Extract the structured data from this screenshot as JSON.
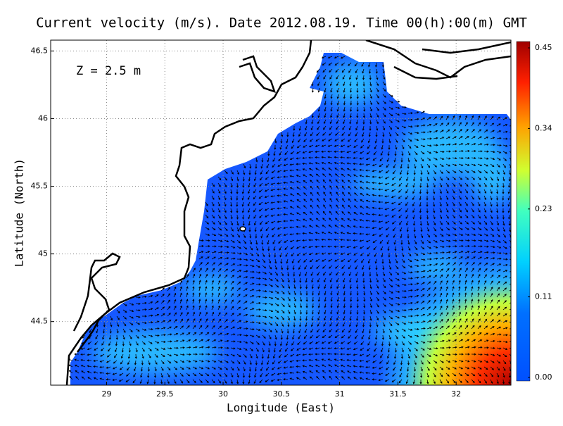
{
  "chart_data": {
    "type": "vector-field-map",
    "title": "Current velocity (m/s). Date 2012.08.19. Time 00(h):00(m) GMT",
    "annotation": "Z = 2.5 m",
    "xlabel": "Longitude (East)",
    "ylabel": "Latitude (North)",
    "xlim": [
      28.52,
      32.47
    ],
    "ylim": [
      44.03,
      46.58
    ],
    "xticks": [
      29,
      29.5,
      30,
      30.5,
      31,
      31.5,
      32
    ],
    "yticks": [
      44.5,
      45,
      45.5,
      46,
      46.5
    ],
    "grid": true,
    "colorbar": {
      "lim": [
        0,
        0.45
      ],
      "ticks": [
        {
          "value": 0,
          "label": "0.00"
        },
        0.11,
        0.23,
        0.34,
        0.45
      ]
    }
  }
}
